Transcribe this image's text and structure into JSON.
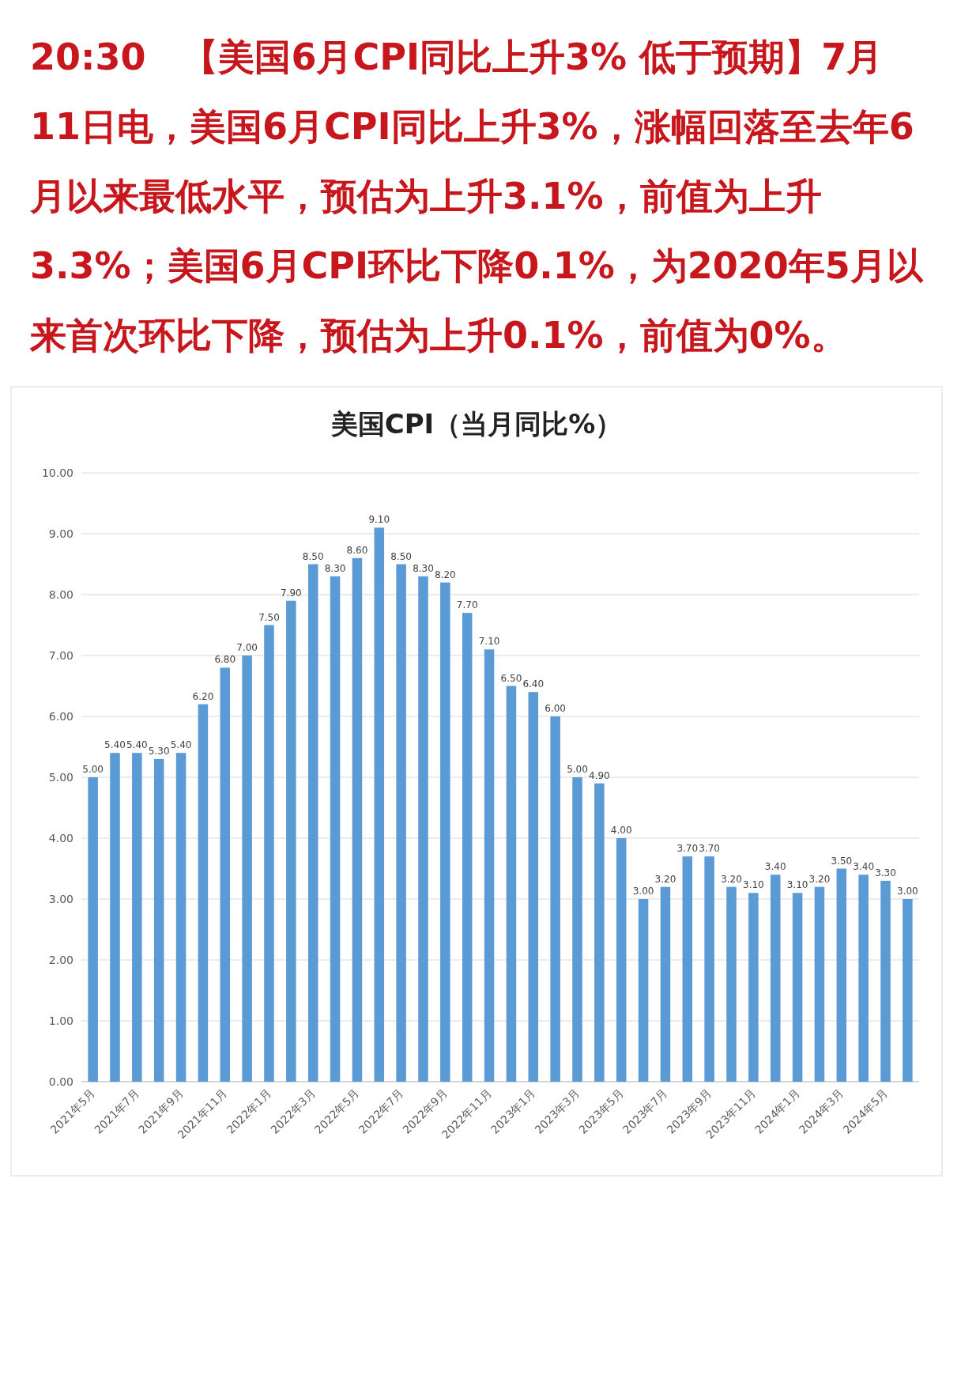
{
  "chart_data": {
    "type": "bar",
    "title": "美国CPI（当月同比%）",
    "annotations": [
      "20:30　【美国6月CPI同比上升3% 低于预期】7月11日电，美国6月CPI同比上升3%，涨幅回落至去年6月以来最低水平，预估为上升3.1%，前值为上升3.3%；美国6月CPI环比下降0.1%，为2020年5月以来首次环比下降，预估为上升0.1%，前值为0%。"
    ],
    "categories": [
      "2021年5月",
      null,
      "2021年7月",
      null,
      "2021年9月",
      null,
      "2021年11月",
      null,
      "2022年1月",
      null,
      "2022年3月",
      null,
      "2022年5月",
      null,
      "2022年7月",
      null,
      "2022年9月",
      null,
      "2022年11月",
      null,
      "2023年1月",
      null,
      "2023年3月",
      null,
      "2023年5月",
      null,
      "2023年7月",
      null,
      "2023年9月",
      null,
      "2023年11月",
      null,
      "2024年1月",
      null,
      "2024年3月",
      null,
      "2024年5月",
      null
    ],
    "values": [
      5.0,
      5.4,
      5.4,
      5.3,
      5.4,
      6.2,
      6.8,
      7.0,
      7.5,
      7.9,
      8.5,
      8.3,
      8.6,
      9.1,
      8.5,
      8.3,
      8.2,
      7.7,
      7.1,
      6.5,
      6.4,
      6.0,
      5.0,
      4.9,
      4.0,
      3.0,
      3.2,
      3.7,
      3.7,
      3.2,
      3.1,
      3.4,
      3.1,
      3.2,
      3.5,
      3.4,
      3.3,
      3.0
    ],
    "value_labels": [
      "5.00",
      "5.40",
      "5.40",
      "5.30",
      "5.40",
      "6.20",
      "6.80",
      "7.00",
      "7.50",
      "7.90",
      "8.50",
      "8.30",
      "8.60",
      "9.10",
      "8.50",
      "8.30",
      "8.20",
      "7.70",
      "7.10",
      "6.50",
      "6.40",
      "6.00",
      "5.00",
      "4.90",
      "4.00",
      "3.00",
      "3.20",
      "3.70",
      "3.70",
      "3.20",
      "3.10",
      "3.40",
      "3.10",
      "3.20",
      "3.50",
      "3.40",
      "3.30",
      "3.00"
    ],
    "color": "#5b9bd5",
    "ylim": [
      0,
      10
    ],
    "yticks": [
      {
        "value": 0,
        "label": "0.00"
      },
      {
        "value": 1,
        "label": "1.00"
      },
      {
        "value": 2,
        "label": "2.00"
      },
      {
        "value": 3,
        "label": "3.00"
      },
      {
        "value": 4,
        "label": "4.00"
      },
      {
        "value": 5,
        "label": "5.00"
      },
      {
        "value": 6,
        "label": "6.00"
      },
      {
        "value": 7,
        "label": "7.00"
      },
      {
        "value": 8,
        "label": "8.00"
      },
      {
        "value": 9,
        "label": "9.00"
      },
      {
        "value": 10,
        "label": "10.00"
      }
    ],
    "grid": "y"
  }
}
